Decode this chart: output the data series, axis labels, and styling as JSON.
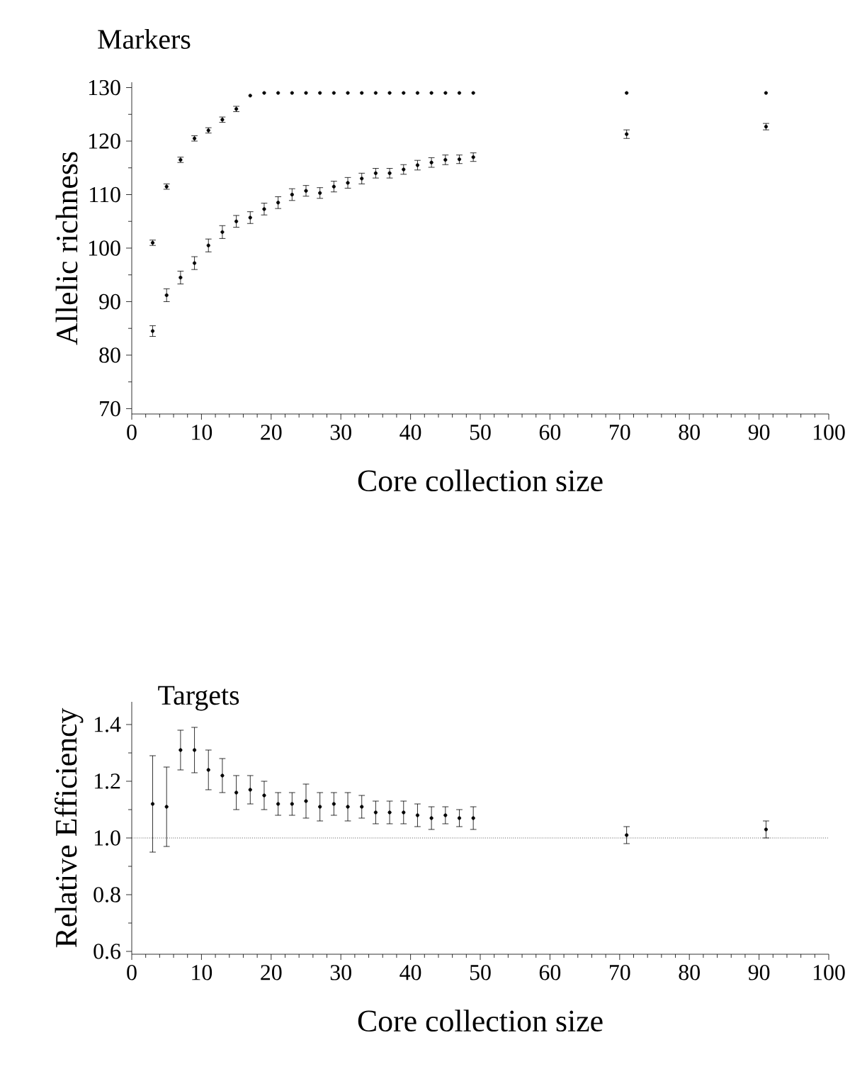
{
  "chart_data": [
    {
      "type": "scatter",
      "title": "Markers",
      "xlabel": "Core collection size",
      "ylabel": "Allelic richness",
      "x": [
        3,
        5,
        7,
        9,
        11,
        13,
        15,
        17,
        19,
        21,
        23,
        25,
        27,
        29,
        31,
        33,
        35,
        37,
        39,
        41,
        43,
        45,
        47,
        49,
        71,
        91
      ],
      "series": [
        {
          "color": "#000000",
          "values": [
            101,
            111.5,
            116.5,
            120.5,
            122,
            124,
            126,
            128.5,
            129,
            129,
            129,
            129,
            129,
            129,
            129,
            129,
            129,
            129,
            129,
            129,
            129,
            129,
            129,
            129,
            129,
            129
          ],
          "errors": [
            0.5,
            0.5,
            0.5,
            0.5,
            0.5,
            0.5,
            0.5,
            null,
            null,
            null,
            null,
            null,
            null,
            null,
            null,
            null,
            null,
            null,
            null,
            null,
            null,
            null,
            null,
            null,
            null,
            null
          ]
        },
        {
          "color": "#000000",
          "values": [
            84.5,
            91.2,
            94.5,
            97.2,
            100.5,
            103,
            105,
            105.7,
            107.3,
            108.5,
            110,
            110.7,
            110.3,
            111.5,
            112.2,
            113,
            114,
            114,
            114.7,
            115.5,
            116,
            116.5,
            116.6,
            117,
            121.3,
            122.7
          ],
          "errors": [
            1,
            1.2,
            1.2,
            1.2,
            1.2,
            1.2,
            1.1,
            1.1,
            1.1,
            1.1,
            1.1,
            1,
            1,
            1,
            1,
            1,
            0.9,
            0.9,
            0.9,
            0.9,
            0.9,
            0.9,
            0.8,
            0.8,
            0.8,
            0.6
          ]
        }
      ],
      "xlim": [
        0,
        100
      ],
      "ylim": [
        69,
        131
      ],
      "xticks": [
        0,
        10,
        20,
        30,
        40,
        50,
        60,
        70,
        80,
        90,
        100
      ],
      "yticks": [
        70,
        80,
        90,
        100,
        110,
        120,
        130
      ],
      "marker": "circle"
    },
    {
      "type": "scatter",
      "title": "Targets",
      "xlabel": "Core collection size",
      "ylabel": "Relative Efficiency",
      "x": [
        3,
        5,
        7,
        9,
        11,
        13,
        15,
        17,
        19,
        21,
        23,
        25,
        27,
        29,
        31,
        33,
        35,
        37,
        39,
        41,
        43,
        45,
        47,
        49,
        71,
        91
      ],
      "series": [
        {
          "color": "#000000",
          "values": [
            1.12,
            1.11,
            1.31,
            1.31,
            1.24,
            1.22,
            1.16,
            1.17,
            1.15,
            1.12,
            1.12,
            1.13,
            1.11,
            1.12,
            1.11,
            1.11,
            1.09,
            1.09,
            1.09,
            1.08,
            1.07,
            1.08,
            1.07,
            1.07,
            1.01,
            1.03
          ],
          "errors": [
            0.17,
            0.14,
            0.07,
            0.08,
            0.07,
            0.06,
            0.06,
            0.05,
            0.05,
            0.04,
            0.04,
            0.06,
            0.05,
            0.04,
            0.05,
            0.04,
            0.04,
            0.04,
            0.04,
            0.04,
            0.04,
            0.03,
            0.03,
            0.04,
            0.03,
            0.03
          ]
        }
      ],
      "xlim": [
        0,
        100
      ],
      "ylim": [
        0.59,
        1.48
      ],
      "xticks": [
        0,
        10,
        20,
        30,
        40,
        50,
        60,
        70,
        80,
        90,
        100
      ],
      "yticks": [
        {
          "value": 0.6,
          "label": "0.6"
        },
        {
          "value": 0.8,
          "label": "0.8"
        },
        {
          "value": 1,
          "label": "1.0"
        },
        {
          "value": 1.2,
          "label": "1.2"
        },
        {
          "value": 1.4,
          "label": "1.4"
        }
      ],
      "ref_lines": [
        {
          "axis": "y",
          "value": 1,
          "line_style": "dotted"
        }
      ],
      "marker": "circle"
    }
  ]
}
